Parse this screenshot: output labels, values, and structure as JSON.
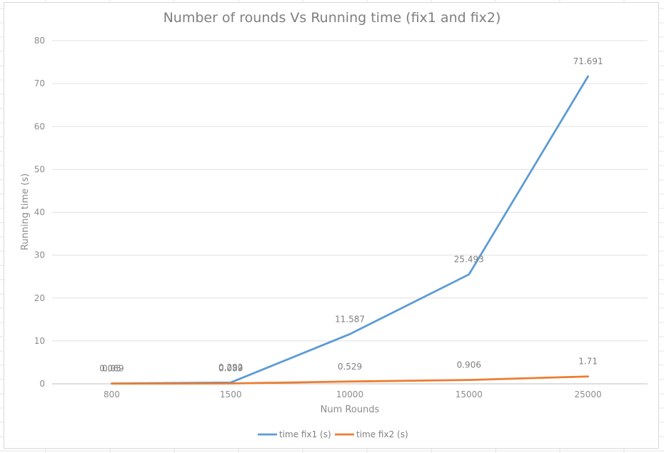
{
  "chart_data": {
    "type": "line",
    "title": "Number of rounds Vs Running time (fix1 and fix2)",
    "xlabel": "Num Rounds",
    "ylabel": "Running time (s)",
    "categories": [
      "800",
      "1500",
      "10000",
      "15000",
      "25000"
    ],
    "ylim": [
      0,
      80
    ],
    "yticks": [
      "0",
      "10",
      "20",
      "30",
      "40",
      "50",
      "60",
      "70",
      "80"
    ],
    "grid": true,
    "legend_position": "bottom",
    "series": [
      {
        "name": "time fix1 (s)",
        "color": "#5b9bd5",
        "values": [
          0.069,
          0.292,
          11.587,
          25.493,
          71.691
        ],
        "labels": [
          "0.069",
          "0.292",
          "11.587",
          "25.493",
          "71.691"
        ]
      },
      {
        "name": "time fix2 (s)",
        "color": "#ed7d31",
        "values": [
          0.05,
          0.089,
          0.529,
          0.906,
          1.71
        ],
        "labels": [
          "0.05",
          "0.089",
          "0.529",
          "0.906",
          "1.71"
        ]
      }
    ]
  }
}
